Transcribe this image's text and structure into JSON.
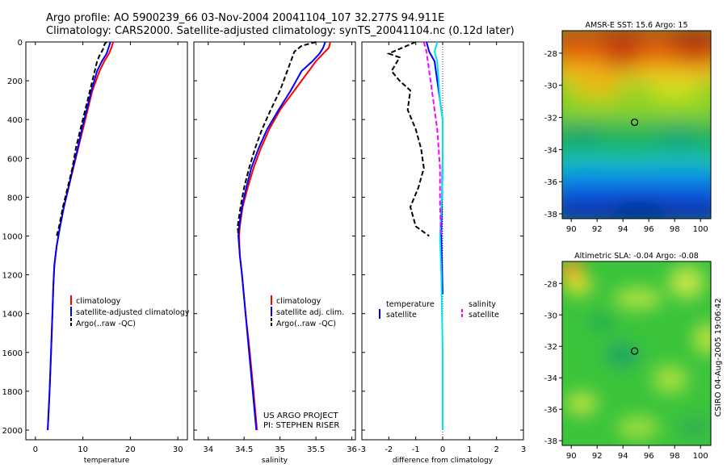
{
  "header": {
    "line1": "Argo profile: AO 5900239_66 03-Nov-2004 20041104_107 32.277S 94.911E",
    "line2": "Climatology: CARS2000. Satellite-adjusted climatology: synTS_20041104.nc (0.12d later)"
  },
  "side_label": "CSIRO 04-Aug-2005 19:06:42",
  "project_note": {
    "line1": "US ARGO PROJECT",
    "line2": "PI: STEPHEN RISER"
  },
  "colors": {
    "climatology": "#ff0000",
    "satellite": "#0000ff",
    "argo": "#000000",
    "sal_diff": "#00e5ee",
    "sal_sat": "#ff00ff"
  },
  "chart_data": [
    {
      "type": "line",
      "xlabel": "temperature",
      "xlim": [
        -2,
        32
      ],
      "xticks": [
        0,
        10,
        20,
        30
      ],
      "ylim": [
        2050,
        0
      ],
      "yticks": [
        0,
        200,
        400,
        600,
        800,
        1000,
        1200,
        1400,
        1600,
        1800,
        2000
      ],
      "legend_position": "lower-right",
      "series": [
        {
          "name": "climatology",
          "color": "#ff0000",
          "dash": "none",
          "points": [
            [
              16.4,
              0
            ],
            [
              16.0,
              30
            ],
            [
              15.5,
              60
            ],
            [
              14.5,
              100
            ],
            [
              13.5,
              150
            ],
            [
              12.0,
              250
            ],
            [
              11.0,
              350
            ],
            [
              10.0,
              450
            ],
            [
              9.0,
              550
            ],
            [
              8.0,
              650
            ],
            [
              7.0,
              750
            ],
            [
              6.0,
              850
            ],
            [
              5.2,
              950
            ],
            [
              4.5,
              1050
            ],
            [
              4.0,
              1150
            ],
            [
              3.8,
              1250
            ],
            [
              3.6,
              1400
            ],
            [
              3.3,
              1600
            ],
            [
              3.0,
              1800
            ],
            [
              2.6,
              2000
            ]
          ]
        },
        {
          "name": "satellite-adjusted climatology",
          "color": "#0000ff",
          "dash": "none",
          "points": [
            [
              15.8,
              0
            ],
            [
              15.4,
              30
            ],
            [
              15.0,
              60
            ],
            [
              14.0,
              100
            ],
            [
              13.0,
              150
            ],
            [
              11.8,
              250
            ],
            [
              10.8,
              350
            ],
            [
              9.8,
              450
            ],
            [
              8.9,
              550
            ],
            [
              7.9,
              650
            ],
            [
              7.0,
              750
            ],
            [
              6.0,
              850
            ],
            [
              5.2,
              950
            ],
            [
              4.5,
              1050
            ],
            [
              4.0,
              1150
            ],
            [
              3.8,
              1250
            ],
            [
              3.6,
              1400
            ],
            [
              3.3,
              1600
            ],
            [
              3.0,
              1800
            ],
            [
              2.6,
              2000
            ]
          ]
        },
        {
          "name": "Argo(..raw -QC)",
          "color": "#000000",
          "dash": "6,3",
          "points": [
            [
              15.0,
              0
            ],
            [
              14.6,
              10
            ],
            [
              14.2,
              40
            ],
            [
              13.5,
              70
            ],
            [
              13.0,
              100
            ],
            [
              12.5,
              150
            ],
            [
              11.5,
              250
            ],
            [
              10.5,
              350
            ],
            [
              9.5,
              450
            ],
            [
              8.5,
              550
            ],
            [
              7.8,
              650
            ],
            [
              6.8,
              750
            ],
            [
              5.8,
              850
            ],
            [
              5.0,
              950
            ],
            [
              4.5,
              1000
            ]
          ]
        }
      ]
    },
    {
      "type": "line",
      "xlabel": "salinity",
      "xlim": [
        33.8,
        36.05
      ],
      "xticks": [
        34,
        34.5,
        35,
        35.5,
        36
      ],
      "ylim": [
        2050,
        0
      ],
      "legend_position": "lower-right",
      "series": [
        {
          "name": "climatology",
          "color": "#ff0000",
          "dash": "none",
          "points": [
            [
              35.7,
              0
            ],
            [
              35.68,
              30
            ],
            [
              35.6,
              60
            ],
            [
              35.5,
              100
            ],
            [
              35.4,
              150
            ],
            [
              35.2,
              250
            ],
            [
              35.0,
              350
            ],
            [
              34.85,
              450
            ],
            [
              34.73,
              550
            ],
            [
              34.63,
              650
            ],
            [
              34.55,
              750
            ],
            [
              34.48,
              850
            ],
            [
              34.44,
              950
            ],
            [
              34.43,
              1000
            ],
            [
              34.44,
              1100
            ],
            [
              34.47,
              1200
            ],
            [
              34.52,
              1400
            ],
            [
              34.58,
              1600
            ],
            [
              34.63,
              1800
            ],
            [
              34.68,
              2000
            ]
          ]
        },
        {
          "name": "satellite adj. clim.",
          "color": "#0000ff",
          "dash": "none",
          "points": [
            [
              35.63,
              0
            ],
            [
              35.6,
              30
            ],
            [
              35.55,
              60
            ],
            [
              35.45,
              100
            ],
            [
              35.3,
              150
            ],
            [
              35.15,
              250
            ],
            [
              34.98,
              350
            ],
            [
              34.82,
              450
            ],
            [
              34.7,
              550
            ],
            [
              34.6,
              650
            ],
            [
              34.53,
              750
            ],
            [
              34.47,
              850
            ],
            [
              34.43,
              950
            ],
            [
              34.42,
              1000
            ],
            [
              34.44,
              1100
            ],
            [
              34.47,
              1200
            ],
            [
              34.52,
              1400
            ],
            [
              34.57,
              1600
            ],
            [
              34.62,
              1800
            ],
            [
              34.67,
              2000
            ]
          ]
        },
        {
          "name": "Argo(..raw -QC)",
          "color": "#000000",
          "dash": "6,3",
          "points": [
            [
              35.5,
              0
            ],
            [
              35.3,
              20
            ],
            [
              35.2,
              50
            ],
            [
              35.15,
              100
            ],
            [
              35.1,
              150
            ],
            [
              35.0,
              250
            ],
            [
              34.87,
              350
            ],
            [
              34.75,
              450
            ],
            [
              34.65,
              550
            ],
            [
              34.57,
              650
            ],
            [
              34.5,
              750
            ],
            [
              34.45,
              850
            ],
            [
              34.41,
              950
            ],
            [
              34.42,
              1000
            ]
          ]
        }
      ]
    },
    {
      "type": "line",
      "xlabel": "difference from climatology",
      "xlim": [
        -3,
        3
      ],
      "xticks": [
        -3,
        -2,
        -1,
        0,
        1,
        2,
        3
      ],
      "ylim": [
        2050,
        0
      ],
      "zero_line": true,
      "legend_position": "lower",
      "series": [
        {
          "name": "temperature",
          "color": "#000000",
          "dash": "6,3",
          "points": [
            [
              -1.0,
              0
            ],
            [
              -1.5,
              30
            ],
            [
              -2.0,
              60
            ],
            [
              -1.6,
              80
            ],
            [
              -1.9,
              150
            ],
            [
              -1.6,
              200
            ],
            [
              -1.2,
              250
            ],
            [
              -1.3,
              350
            ],
            [
              -1.0,
              450
            ],
            [
              -0.8,
              550
            ],
            [
              -0.7,
              650
            ],
            [
              -0.9,
              750
            ],
            [
              -1.2,
              850
            ],
            [
              -1.0,
              950
            ],
            [
              -0.5,
              1000
            ]
          ]
        },
        {
          "name": "satellite",
          "color": "#0000ff",
          "dash": "none",
          "points": [
            [
              -0.6,
              0
            ],
            [
              -0.5,
              50
            ],
            [
              -0.3,
              100
            ],
            [
              -0.2,
              200
            ],
            [
              -0.1,
              300
            ],
            [
              0.0,
              400
            ],
            [
              0.0,
              600
            ],
            [
              -0.05,
              1000
            ],
            [
              0.0,
              1300
            ]
          ]
        },
        {
          "name": "salinity",
          "color": "#00e5ee",
          "dash": "none",
          "points": [
            [
              -0.2,
              0
            ],
            [
              -0.3,
              50
            ],
            [
              -0.2,
              100
            ],
            [
              -0.15,
              200
            ],
            [
              -0.1,
              300
            ],
            [
              0.0,
              400
            ],
            [
              0.0,
              700
            ],
            [
              -0.1,
              1000
            ],
            [
              -0.05,
              1200
            ],
            [
              0.0,
              1600
            ],
            [
              0.0,
              2000
            ]
          ]
        },
        {
          "name": "satellite",
          "color": "#ff00ff",
          "dash": "6,3",
          "points": [
            [
              -0.7,
              0
            ],
            [
              -0.6,
              50
            ],
            [
              -0.5,
              150
            ],
            [
              -0.4,
              250
            ],
            [
              -0.3,
              350
            ],
            [
              -0.2,
              450
            ],
            [
              -0.1,
              650
            ],
            [
              -0.1,
              850
            ],
            [
              -0.05,
              1000
            ]
          ]
        }
      ]
    },
    {
      "type": "heatmap",
      "title": "AMSR-E SST: 15.6  Argo: 15",
      "xlim": [
        89.3,
        100.8
      ],
      "ylim": [
        -38.3,
        -26.6
      ],
      "xticks": [
        90,
        92,
        94,
        96,
        98,
        100
      ],
      "yticks": [
        -28,
        -30,
        -32,
        -34,
        -36,
        -38
      ],
      "marker": {
        "lon": 94.9,
        "lat": -32.3
      }
    },
    {
      "type": "heatmap",
      "title": "Altimetric SLA: -0.04  Argo: -0.08",
      "xlim": [
        89.3,
        100.8
      ],
      "ylim": [
        -38.3,
        -26.6
      ],
      "xticks": [
        90,
        92,
        94,
        96,
        98,
        100
      ],
      "yticks": [
        -28,
        -30,
        -32,
        -34,
        -36,
        -38
      ],
      "marker": {
        "lon": 94.9,
        "lat": -32.3
      }
    }
  ]
}
